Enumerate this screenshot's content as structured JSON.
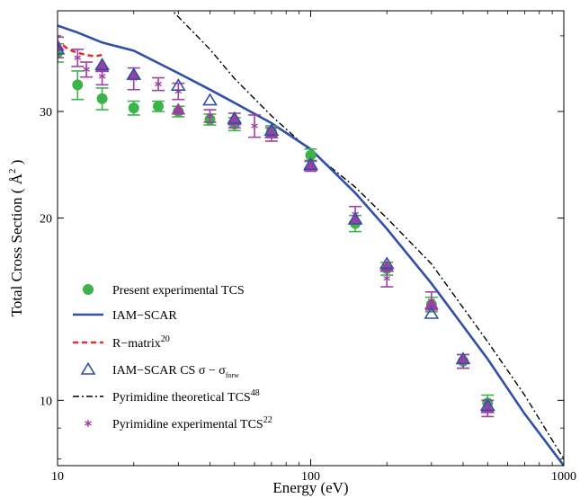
{
  "chart_data": {
    "type": "scatter",
    "xlabel": "Energy (eV)",
    "ylabel_main": "Total Cross Section ( ",
    "ylabel_unit": "Å",
    "ylabel_exp": "2",
    "ylabel_close": " )",
    "x_scale": "log",
    "y_scale": "log",
    "xlim": [
      10,
      1000
    ],
    "ylim": [
      7.8,
      44
    ],
    "x_ticks": [
      10,
      100,
      1000
    ],
    "x_tick_labels": [
      "10",
      "100",
      "1000"
    ],
    "y_ticks": [
      10,
      20,
      30
    ],
    "y_tick_labels": [
      "10",
      "20",
      "30"
    ],
    "grid": false,
    "legend_position": "bottom-left",
    "colors": {
      "present": "#3cb44b",
      "iam_scar": "#3050a8",
      "r_matrix": "#e03030",
      "iam_cs": "#3050a8",
      "theory": "#000000",
      "pyr_exp": "#a040a0",
      "triangle_fill": "#9b3fa0"
    },
    "series": [
      {
        "name": "Present experimental TCS",
        "style": "filled-circle-errorbar",
        "x": [
          10,
          12,
          15,
          20,
          25,
          30,
          40,
          50,
          70,
          100,
          150,
          200,
          300,
          400,
          500
        ],
        "y": [
          37.5,
          33.2,
          31.5,
          30.4,
          30.6,
          30.0,
          29.1,
          28.6,
          27.8,
          25.4,
          19.6,
          16.5,
          14.4,
          11.6,
          9.9
        ],
        "err": [
          1.3,
          1.8,
          1.3,
          0.8,
          0.6,
          0.6,
          0.6,
          0.7,
          0.6,
          0.6,
          0.6,
          0.4,
          0.4,
          0.3,
          0.3
        ]
      },
      {
        "name": "IAM−SCAR",
        "style": "line",
        "x": [
          9.8,
          12,
          15,
          20,
          30,
          40,
          50,
          70,
          100,
          150,
          200,
          300,
          500,
          700,
          1000
        ],
        "y": [
          41.7,
          40.5,
          39.0,
          37.8,
          34.7,
          32.6,
          31.0,
          28.7,
          26.0,
          22.0,
          19.2,
          15.6,
          11.7,
          9.5,
          7.8
        ]
      },
      {
        "name": "R−matrix",
        "name_sup": "20",
        "style": "dashed",
        "x": [
          9.8,
          10.3,
          11,
          12,
          13,
          14,
          15
        ],
        "y": [
          38.6,
          38.9,
          38.0,
          37.5,
          37.2,
          37.0,
          37.2
        ]
      },
      {
        "name": "IAM−SCAR CS  σ − σ",
        "name_sub": "forw",
        "style": "open-triangle",
        "x": [
          10,
          15,
          20,
          30,
          40,
          50,
          70,
          100,
          150,
          200,
          300,
          400,
          500
        ],
        "y": [
          38.0,
          35.8,
          34.5,
          33.1,
          31.3,
          29.2,
          27.9,
          24.5,
          19.9,
          16.8,
          13.9,
          11.7,
          9.8
        ]
      },
      {
        "name": "Pyrimidine theoretical TCS",
        "name_sup": "48",
        "style": "dash-dot",
        "x": [
          25,
          30,
          40,
          50,
          70,
          100,
          150,
          200,
          300,
          500,
          700,
          1000
        ],
        "y": [
          46.5,
          43.0,
          38.0,
          34.0,
          29.5,
          25.8,
          22.5,
          20.0,
          16.8,
          12.5,
          10.2,
          8.0
        ]
      },
      {
        "name": "Pyrimidine experimental TCS",
        "name_sup": "22",
        "style": "asterisk-errorbar",
        "x": [
          10,
          12,
          13,
          15,
          20,
          25,
          30,
          40,
          50,
          60,
          70,
          100,
          150,
          200,
          300,
          400,
          500
        ],
        "y": [
          38.3,
          36.8,
          35.2,
          34.3,
          34.0,
          33.3,
          32.4,
          29.5,
          29.0,
          28.4,
          27.5,
          24.4,
          20.3,
          15.9,
          14.6,
          11.6,
          9.7
        ],
        "err": [
          1.5,
          1.2,
          1.0,
          1.1,
          1.4,
          0.8,
          1.0,
          0.7,
          0.8,
          1.2,
          0.7,
          0.5,
          0.6,
          0.5,
          0.5,
          0.3,
          0.3
        ]
      },
      {
        "name": "",
        "style": "filled-triangle",
        "x": [
          10,
          15,
          20,
          30,
          50,
          70,
          100,
          150,
          200,
          300,
          400,
          500
        ],
        "y": [
          38.5,
          35.5,
          34.5,
          30.2,
          29.0,
          27.6,
          24.4,
          19.9,
          16.6,
          14.4,
          11.7,
          9.7
        ]
      }
    ]
  }
}
